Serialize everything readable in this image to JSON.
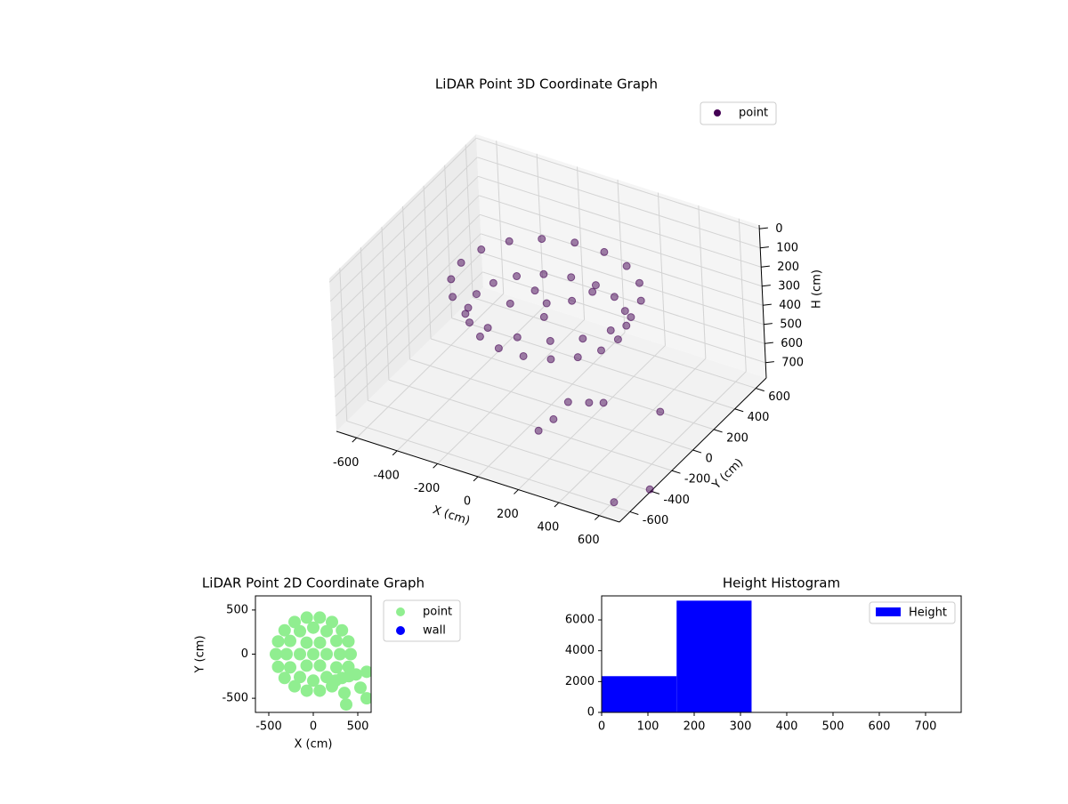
{
  "chart_data": [
    {
      "type": "scatter3d",
      "title": "LiDAR Point 3D Coordinate Graph",
      "xlabel": "X (cm)",
      "ylabel": "Y (cm)",
      "zlabel": "H (cm)",
      "xlim": [
        -700,
        700
      ],
      "ylim": [
        -700,
        700
      ],
      "zlim": [
        780,
        -20
      ],
      "xticks": [
        -600,
        -400,
        -200,
        0,
        200,
        400,
        600
      ],
      "yticks": [
        -600,
        -400,
        -200,
        0,
        200,
        400,
        600
      ],
      "zticks": [
        0,
        100,
        200,
        300,
        400,
        500,
        600,
        700
      ],
      "grid": true,
      "legend": "upper right",
      "series": [
        {
          "name": "point",
          "color": "#440154",
          "x": [
            420,
            395,
            322,
            210,
            73,
            -73,
            -210,
            -322,
            -395,
            -420,
            -395,
            -322,
            -210,
            -73,
            73,
            210,
            322,
            395,
            350,
            329,
            268,
            175,
            61,
            -61,
            -175,
            -268,
            -329,
            -350,
            -329,
            -268,
            -175,
            -61,
            61,
            175,
            268,
            329,
            0,
            100,
            -100,
            50,
            -150,
            150,
            250,
            300,
            200,
            150,
            400,
            600,
            650,
            750
          ],
          "y": [
            0,
            144,
            270,
            364,
            414,
            414,
            364,
            270,
            144,
            0,
            -144,
            -270,
            -364,
            -414,
            -414,
            -364,
            -270,
            -144,
            0,
            120,
            225,
            303,
            345,
            345,
            303,
            225,
            120,
            0,
            -120,
            -225,
            -303,
            -345,
            -345,
            -303,
            -225,
            -120,
            0,
            50,
            80,
            -120,
            -60,
            150,
            -300,
            -200,
            -350,
            -400,
            -250,
            -100,
            -650,
            -500
          ],
          "z": [
            180,
            180,
            180,
            180,
            180,
            180,
            180,
            180,
            180,
            180,
            180,
            180,
            180,
            180,
            180,
            180,
            180,
            180,
            320,
            320,
            320,
            320,
            320,
            320,
            320,
            320,
            320,
            320,
            320,
            320,
            320,
            320,
            320,
            320,
            320,
            320,
            250,
            230,
            260,
            240,
            270,
            220,
            520,
            560,
            600,
            650,
            500,
            560,
            720,
            700
          ]
        }
      ]
    },
    {
      "type": "scatter",
      "title": "LiDAR Point 2D Coordinate Graph",
      "xlabel": "X (cm)",
      "ylabel": "Y (cm)",
      "xlim": [
        -650,
        650
      ],
      "ylim": [
        -660,
        660
      ],
      "xticks": [
        -500,
        0,
        500
      ],
      "yticks": [
        -500,
        0,
        500
      ],
      "legend": "outside right",
      "series": [
        {
          "name": "point",
          "color": "#90ee90",
          "x": [
            420,
            395,
            322,
            210,
            73,
            -73,
            -210,
            -322,
            -395,
            -420,
            -395,
            -322,
            -210,
            -73,
            73,
            210,
            322,
            395,
            300,
            260,
            150,
            0,
            -150,
            -260,
            -300,
            -260,
            -150,
            0,
            150,
            260,
            150,
            75,
            -75,
            -150,
            -75,
            75,
            0,
            350,
            370,
            480,
            530,
            600,
            250,
            400,
            600
          ],
          "y": [
            0,
            144,
            270,
            364,
            414,
            414,
            364,
            270,
            144,
            0,
            -144,
            -270,
            -364,
            -414,
            -414,
            -364,
            -270,
            -144,
            0,
            150,
            260,
            300,
            260,
            150,
            0,
            -150,
            -260,
            -300,
            -260,
            -150,
            0,
            130,
            130,
            0,
            -130,
            -130,
            0,
            -440,
            -570,
            -230,
            -380,
            -200,
            -300,
            -250,
            -500
          ]
        },
        {
          "name": "wall",
          "color": "#0000ff",
          "x": [],
          "y": []
        }
      ]
    },
    {
      "type": "histogram",
      "title": "Height Histogram",
      "xlim": [
        0,
        777
      ],
      "ylim": [
        0,
        7560
      ],
      "xticks": [
        0,
        100,
        200,
        300,
        400,
        500,
        600,
        700
      ],
      "yticks": [
        0,
        2000,
        4000,
        6000
      ],
      "legend": "upper right",
      "series": [
        {
          "name": "Height",
          "color": "#0000ff",
          "bins": [
            0,
            162,
            324,
            486,
            648,
            810
          ],
          "values": [
            2350,
            7250,
            0,
            0,
            10
          ]
        }
      ]
    }
  ]
}
